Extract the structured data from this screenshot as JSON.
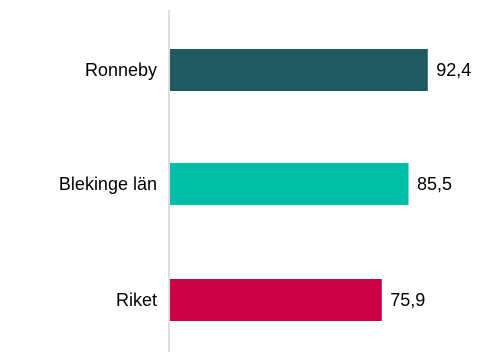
{
  "chart_data": {
    "type": "bar",
    "orientation": "horizontal",
    "categories": [
      "Ronneby",
      "Blekinge län",
      "Riket"
    ],
    "values": [
      92.4,
      85.5,
      75.9
    ],
    "value_labels": [
      "92,4",
      "85,5",
      "75,9"
    ],
    "colors": [
      "#1f5962",
      "#00bfa6",
      "#cc0044"
    ],
    "axis_color": "#bfbfbf",
    "xlim": [
      0,
      100
    ],
    "title": "",
    "xlabel": "",
    "ylabel": "",
    "grid": false,
    "legend": "none"
  }
}
